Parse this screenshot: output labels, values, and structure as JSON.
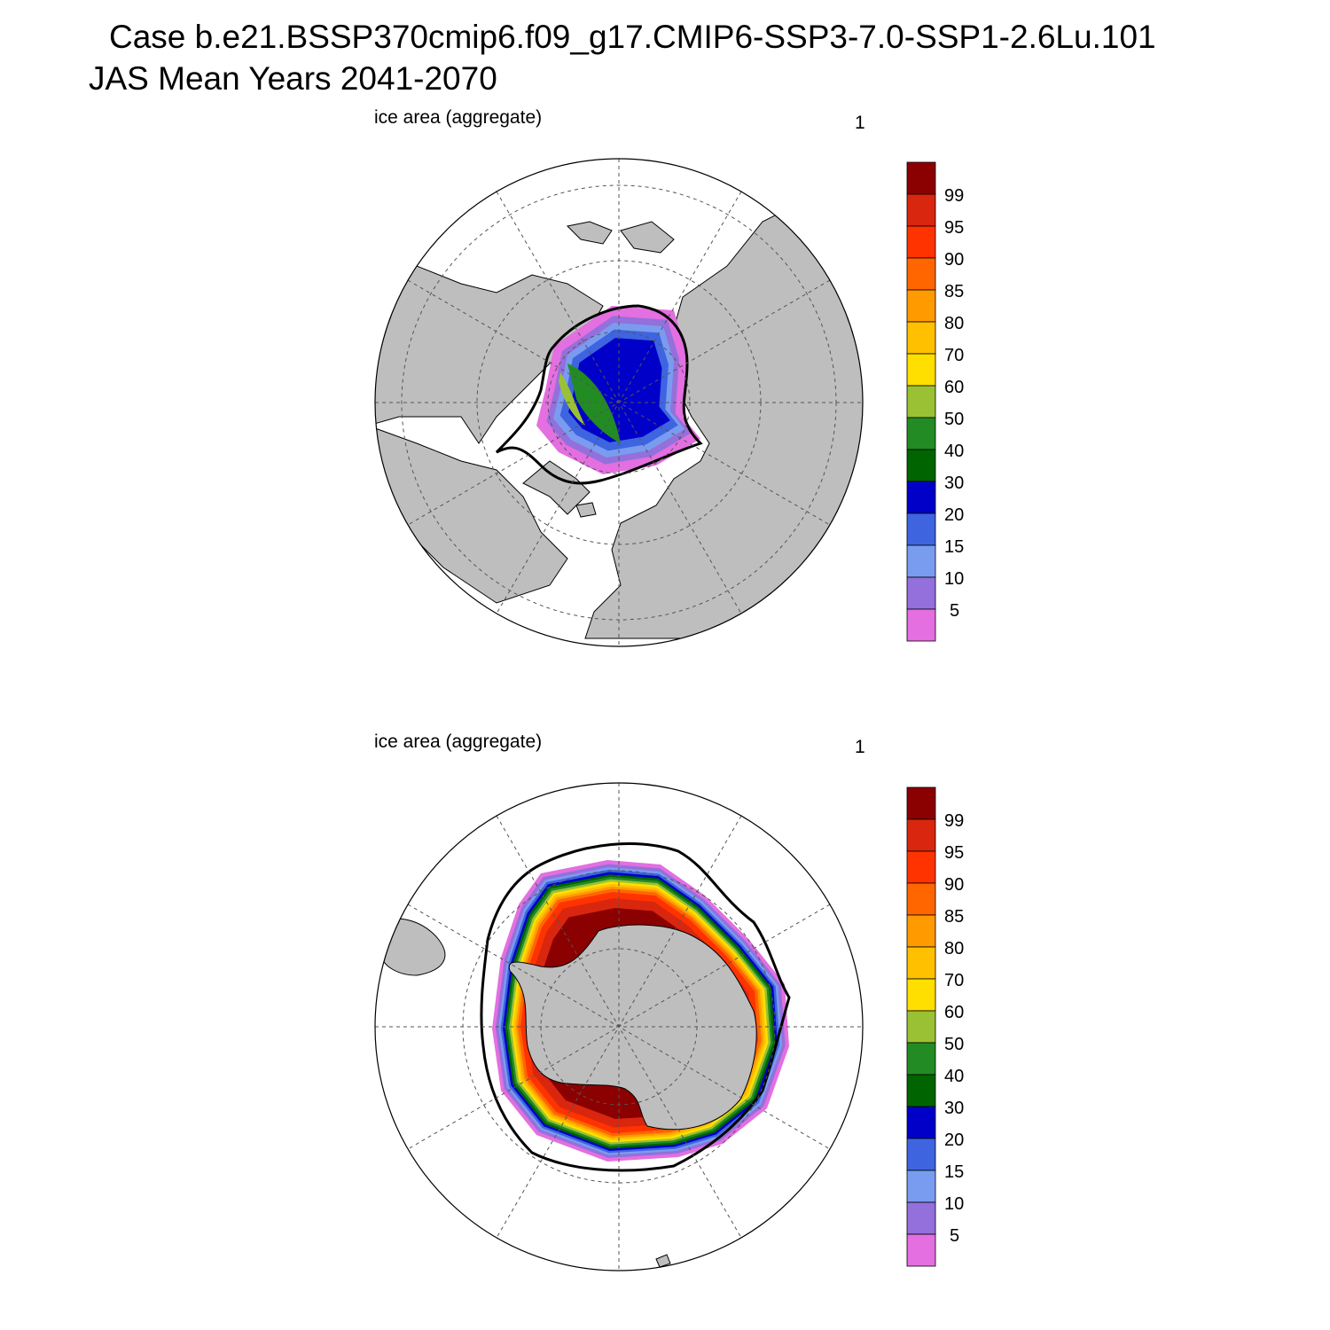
{
  "title": {
    "line1": "Case b.e21.BSSP370cmip6.f09_g17.CMIP6-SSP3-7.0-SSP1-2.6Lu.101",
    "line2": "JAS Mean   Years 2041-2070"
  },
  "colors": {
    "land": "#bebebe",
    "ocean": "#ffffff",
    "edge_contour": "#000000"
  },
  "colorbar": {
    "labels": [
      "99",
      "95",
      "90",
      "85",
      "80",
      "70",
      "60",
      "50",
      "40",
      "30",
      "20",
      "15",
      "10",
      "5"
    ],
    "colors": [
      "#8b0000",
      "#d9260f",
      "#ff3300",
      "#ff6600",
      "#ff9a00",
      "#ffc000",
      "#ffdf00",
      "#9ac133",
      "#238b23",
      "#006400",
      "#0000c8",
      "#3e64e0",
      "#7a9cf0",
      "#9370db",
      "#e36fe0"
    ]
  },
  "panels": [
    {
      "id": "north",
      "left_label": "ice area  (aggregate)",
      "right_label": "1"
    },
    {
      "id": "south",
      "left_label": "ice area  (aggregate)",
      "right_label": "1"
    }
  ]
}
